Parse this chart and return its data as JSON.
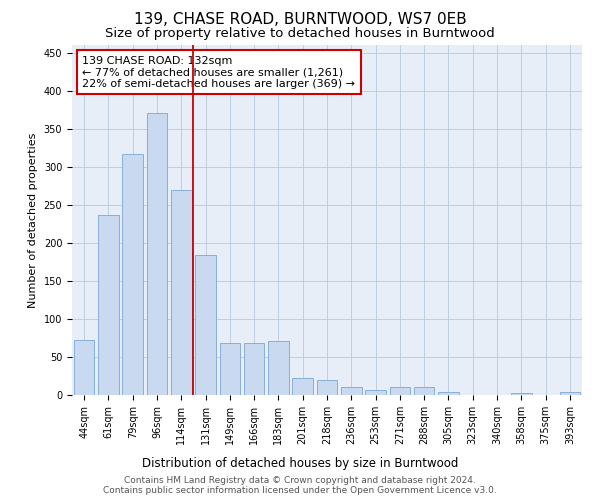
{
  "title": "139, CHASE ROAD, BURNTWOOD, WS7 0EB",
  "subtitle": "Size of property relative to detached houses in Burntwood",
  "xlabel": "Distribution of detached houses by size in Burntwood",
  "ylabel": "Number of detached properties",
  "categories": [
    "44sqm",
    "61sqm",
    "79sqm",
    "96sqm",
    "114sqm",
    "131sqm",
    "149sqm",
    "166sqm",
    "183sqm",
    "201sqm",
    "218sqm",
    "236sqm",
    "253sqm",
    "271sqm",
    "288sqm",
    "305sqm",
    "323sqm",
    "340sqm",
    "358sqm",
    "375sqm",
    "393sqm"
  ],
  "values": [
    72,
    237,
    317,
    370,
    270,
    184,
    68,
    68,
    71,
    22,
    20,
    10,
    6,
    10,
    10,
    4,
    0,
    0,
    3,
    0,
    4
  ],
  "bar_color": "#c9d9ef",
  "bar_edge_color": "#7ba7d4",
  "property_line_x": 5,
  "annotation_text": "139 CHASE ROAD: 132sqm\n← 77% of detached houses are smaller (1,261)\n22% of semi-detached houses are larger (369) →",
  "annotation_box_color": "#ffffff",
  "annotation_box_edge_color": "#cc0000",
  "annotation_line_color": "#cc0000",
  "ylim": [
    0,
    460
  ],
  "yticks": [
    0,
    50,
    100,
    150,
    200,
    250,
    300,
    350,
    400,
    450
  ],
  "background_color": "#ffffff",
  "plot_bg_color": "#e8eef7",
  "grid_color": "#b8c8dc",
  "footer_text": "Contains HM Land Registry data © Crown copyright and database right 2024.\nContains public sector information licensed under the Open Government Licence v3.0.",
  "title_fontsize": 11,
  "subtitle_fontsize": 9.5,
  "xlabel_fontsize": 8.5,
  "ylabel_fontsize": 8,
  "tick_fontsize": 7,
  "annotation_fontsize": 8,
  "footer_fontsize": 6.5
}
